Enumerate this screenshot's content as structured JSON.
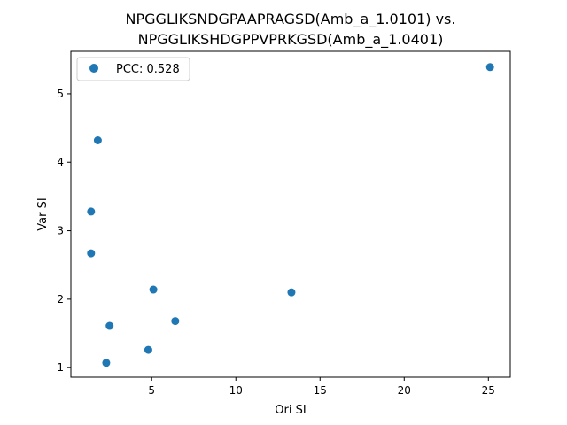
{
  "chart_data": {
    "type": "scatter",
    "title": [
      "NPGGLIKSNDGPAAPRAGSD(Amb_a_1.0101) vs.",
      "NPGGLIKSHDGPPVPRKGSD(Amb_a_1.0401)"
    ],
    "xlabel": "Ori SI",
    "ylabel": "Var SI",
    "xlim": [
      0.2,
      26.3
    ],
    "ylim": [
      0.86,
      5.62
    ],
    "xticks": [
      5,
      10,
      15,
      20,
      25
    ],
    "yticks": [
      1,
      2,
      3,
      4,
      5
    ],
    "grid": false,
    "legend": {
      "placement": "top-left",
      "entries": [
        "PCC: 0.528"
      ]
    },
    "series": [
      {
        "name": "PCC: 0.528",
        "color": "#1f77b4",
        "x": [
          25.1,
          1.8,
          1.4,
          1.4,
          5.1,
          13.3,
          6.4,
          2.5,
          4.8,
          2.3
        ],
        "y": [
          5.39,
          4.32,
          3.28,
          2.67,
          2.14,
          2.1,
          1.68,
          1.61,
          1.26,
          1.07
        ]
      }
    ]
  }
}
